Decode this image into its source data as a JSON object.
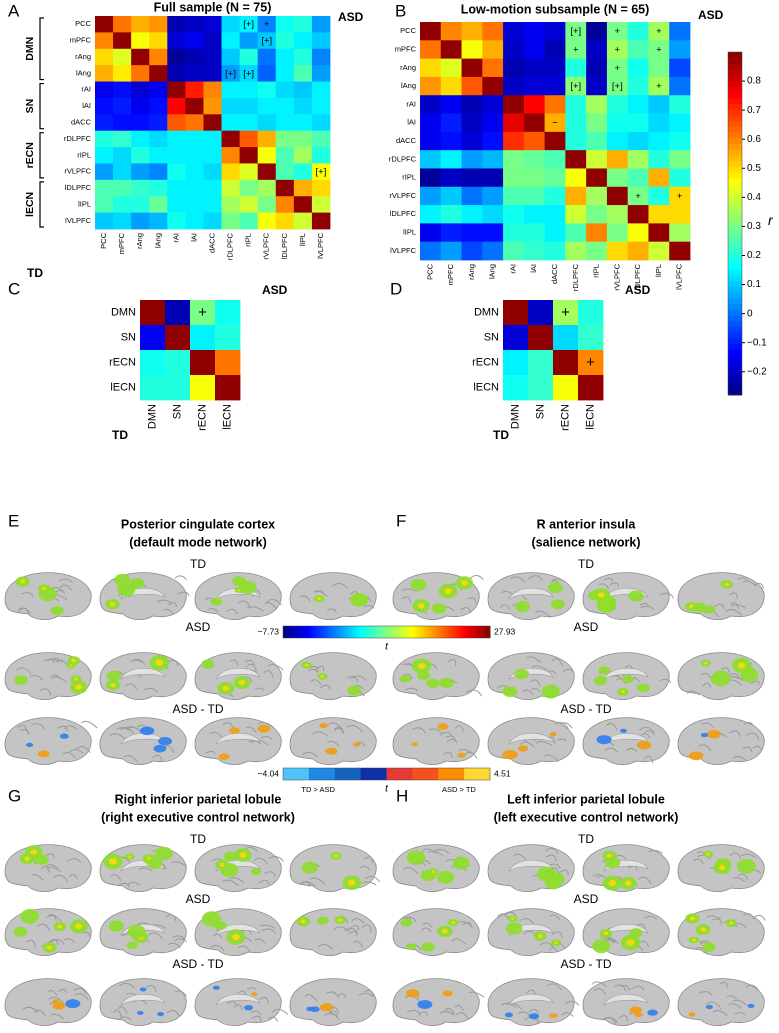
{
  "chart_data": [
    {
      "type": "heatmap",
      "panel": "A",
      "title": "Full sample (N = 75)",
      "upper_label": "ASD",
      "lower_label": "TD",
      "categories": [
        "PCC",
        "mPFC",
        "rAng",
        "lAng",
        "rAI",
        "lAI",
        "dACC",
        "rDLPFC",
        "rIPL",
        "rVLPFC",
        "lDLPFC",
        "lIPL",
        "lVLPFC"
      ],
      "groups": [
        {
          "label": "DMN",
          "from": "PCC",
          "to": "lAng"
        },
        {
          "label": "SN",
          "from": "rAI",
          "to": "dACC"
        },
        {
          "label": "rECN",
          "from": "rDLPFC",
          "to": "rVLPFC"
        },
        {
          "label": "lECN",
          "from": "lDLPFC",
          "to": "lVLPFC"
        }
      ],
      "values": [
        [
          0.88,
          0.62,
          0.55,
          0.58,
          -0.22,
          -0.2,
          -0.18,
          0.12,
          0.15,
          0.02,
          0.18,
          0.2,
          0.05
        ],
        [
          0.6,
          0.88,
          0.45,
          0.5,
          -0.18,
          -0.15,
          -0.2,
          0.15,
          0.05,
          0.1,
          0.2,
          0.15,
          0.1
        ],
        [
          0.5,
          0.42,
          0.88,
          0.6,
          -0.25,
          -0.22,
          -0.2,
          0.1,
          0.2,
          0.0,
          0.15,
          0.2,
          0.02
        ],
        [
          0.55,
          0.48,
          0.62,
          0.88,
          -0.22,
          -0.2,
          -0.2,
          0.05,
          0.12,
          -0.02,
          0.15,
          0.25,
          0.05
        ],
        [
          -0.15,
          -0.12,
          -0.18,
          -0.15,
          0.88,
          0.72,
          0.6,
          0.15,
          0.15,
          0.18,
          0.12,
          0.1,
          0.15
        ],
        [
          -0.12,
          -0.1,
          -0.15,
          -0.12,
          0.75,
          0.88,
          0.58,
          0.12,
          0.12,
          0.15,
          0.15,
          0.12,
          0.15
        ],
        [
          -0.1,
          -0.12,
          -0.12,
          -0.1,
          0.65,
          0.62,
          0.88,
          0.15,
          0.15,
          0.12,
          0.15,
          0.15,
          0.12
        ],
        [
          0.2,
          0.22,
          0.15,
          0.12,
          0.15,
          0.15,
          0.15,
          0.88,
          0.65,
          0.55,
          0.3,
          0.3,
          0.25
        ],
        [
          0.15,
          0.12,
          0.2,
          0.15,
          0.15,
          0.15,
          0.15,
          0.6,
          0.88,
          0.45,
          0.25,
          0.35,
          0.2
        ],
        [
          0.05,
          0.12,
          0.05,
          0.02,
          0.18,
          0.15,
          0.12,
          0.5,
          0.42,
          0.88,
          0.25,
          0.2,
          0.45
        ],
        [
          0.25,
          0.25,
          0.22,
          0.2,
          0.15,
          0.15,
          0.15,
          0.4,
          0.3,
          0.35,
          0.88,
          0.55,
          0.5
        ],
        [
          0.25,
          0.2,
          0.2,
          0.28,
          0.15,
          0.15,
          0.15,
          0.35,
          0.4,
          0.3,
          0.6,
          0.88,
          0.4
        ],
        [
          0.1,
          0.12,
          0.05,
          0.08,
          0.18,
          0.15,
          0.12,
          0.3,
          0.25,
          0.45,
          0.5,
          0.4,
          0.88
        ]
      ],
      "annotations": [
        {
          "row": "PCC",
          "col": "rIPL",
          "label": "[+]"
        },
        {
          "row": "PCC",
          "col": "rVLPFC",
          "label": "+"
        },
        {
          "row": "mPFC",
          "col": "rVLPFC",
          "label": "[+]"
        },
        {
          "row": "lAng",
          "col": "rDLPFC",
          "label": "[+]"
        },
        {
          "row": "lAng",
          "col": "rIPL",
          "label": "[+]"
        },
        {
          "row": "rVLPFC",
          "col": "lVLPFC",
          "label": "[+]"
        }
      ]
    },
    {
      "type": "heatmap",
      "panel": "B",
      "title": "Low-motion subsample (N = 65)",
      "upper_label": "ASD",
      "categories": [
        "PCC",
        "mPFC",
        "rAng",
        "lAng",
        "rAI",
        "lAI",
        "dACC",
        "rDLPFC",
        "rIPL",
        "rVLPFC",
        "lDLPFC",
        "lIPL",
        "lVLPFC"
      ],
      "values": [
        [
          0.88,
          0.6,
          0.55,
          0.62,
          -0.18,
          -0.15,
          -0.18,
          0.3,
          -0.25,
          0.3,
          0.2,
          0.35,
          0.0
        ],
        [
          0.62,
          0.88,
          0.45,
          0.55,
          -0.2,
          -0.15,
          -0.22,
          0.3,
          -0.2,
          0.35,
          0.25,
          0.3,
          0.05
        ],
        [
          0.5,
          0.42,
          0.88,
          0.62,
          -0.22,
          -0.2,
          -0.2,
          0.2,
          -0.22,
          0.3,
          0.18,
          0.3,
          -0.05
        ],
        [
          0.58,
          0.5,
          0.65,
          0.88,
          -0.2,
          -0.18,
          -0.18,
          0.32,
          -0.2,
          0.3,
          0.2,
          0.35,
          0.0
        ],
        [
          -0.2,
          -0.15,
          -0.22,
          -0.18,
          0.88,
          0.75,
          0.62,
          0.2,
          0.35,
          0.2,
          0.15,
          0.1,
          0.2
        ],
        [
          -0.15,
          -0.1,
          -0.2,
          -0.15,
          0.78,
          0.88,
          0.55,
          0.2,
          0.3,
          0.18,
          0.18,
          0.12,
          0.15
        ],
        [
          -0.15,
          -0.12,
          -0.18,
          -0.12,
          0.7,
          0.65,
          0.88,
          0.2,
          0.25,
          0.15,
          0.12,
          0.15,
          0.18
        ],
        [
          0.1,
          0.15,
          0.05,
          0.08,
          0.3,
          0.28,
          0.25,
          0.88,
          0.4,
          0.55,
          0.35,
          0.2,
          0.3
        ],
        [
          -0.25,
          -0.2,
          -0.22,
          -0.22,
          0.3,
          0.3,
          0.28,
          0.45,
          0.88,
          0.3,
          0.25,
          0.55,
          0.2
        ],
        [
          0.05,
          0.1,
          0.0,
          0.05,
          0.25,
          0.25,
          0.2,
          0.55,
          0.35,
          0.88,
          0.3,
          0.2,
          0.5
        ],
        [
          0.15,
          0.2,
          0.15,
          0.12,
          0.18,
          0.15,
          0.15,
          0.4,
          0.3,
          0.35,
          0.88,
          0.5,
          0.5
        ],
        [
          -0.15,
          -0.1,
          -0.12,
          -0.12,
          0.2,
          0.2,
          0.15,
          0.25,
          0.6,
          0.3,
          0.45,
          0.88,
          0.35
        ],
        [
          0.0,
          0.05,
          -0.05,
          0.0,
          0.25,
          0.22,
          0.2,
          0.35,
          0.3,
          0.5,
          0.55,
          0.4,
          0.88
        ]
      ],
      "annotations": [
        {
          "row": "PCC",
          "col": "rDLPFC",
          "label": "[+]"
        },
        {
          "row": "PCC",
          "col": "rVLPFC",
          "label": "+"
        },
        {
          "row": "PCC",
          "col": "lIPL",
          "label": "+"
        },
        {
          "row": "mPFC",
          "col": "rDLPFC",
          "label": "+"
        },
        {
          "row": "mPFC",
          "col": "rVLPFC",
          "label": "+"
        },
        {
          "row": "mPFC",
          "col": "lIPL",
          "label": "+"
        },
        {
          "row": "rAng",
          "col": "rVLPFC",
          "label": "+"
        },
        {
          "row": "lAng",
          "col": "rDLPFC",
          "label": "[+]"
        },
        {
          "row": "lAng",
          "col": "rVLPFC",
          "label": "[+]"
        },
        {
          "row": "lAng",
          "col": "lIPL",
          "label": "+"
        },
        {
          "row": "lAI",
          "col": "dACC",
          "label": "−"
        },
        {
          "row": "rVLPFC",
          "col": "lDLPFC",
          "label": "+"
        },
        {
          "row": "rVLPFC",
          "col": "lVLPFC",
          "label": "+"
        }
      ]
    },
    {
      "type": "heatmap",
      "panel": "C",
      "upper_label": "ASD",
      "lower_label": "TD",
      "categories": [
        "DMN",
        "SN",
        "rECN",
        "lECN"
      ],
      "values": [
        [
          0.88,
          -0.22,
          0.3,
          0.18
        ],
        [
          -0.15,
          0.88,
          0.15,
          0.2
        ],
        [
          0.18,
          0.2,
          0.88,
          0.62
        ],
        [
          0.2,
          0.2,
          0.45,
          0.88
        ]
      ],
      "annotations": [
        {
          "row": "DMN",
          "col": "rECN",
          "label": "+"
        }
      ]
    },
    {
      "type": "heatmap",
      "panel": "D",
      "upper_label": "ASD",
      "lower_label": "TD",
      "categories": [
        "DMN",
        "SN",
        "rECN",
        "lECN"
      ],
      "values": [
        [
          0.88,
          -0.2,
          0.35,
          0.2
        ],
        [
          -0.18,
          0.88,
          0.12,
          0.22
        ],
        [
          0.15,
          0.22,
          0.88,
          0.6
        ],
        [
          0.18,
          0.22,
          0.45,
          0.88
        ]
      ],
      "annotations": [
        {
          "row": "DMN",
          "col": "rECN",
          "label": "+"
        },
        {
          "row": "rECN",
          "col": "lECN",
          "label": "+"
        }
      ]
    },
    {
      "type": "colorbar",
      "orientation": "vertical",
      "label": "r",
      "colormap": "jet",
      "ylim": [
        -0.28,
        0.9
      ],
      "yticks": [
        {
          "value": -0.2,
          "label": "−0.2"
        },
        {
          "value": -0.1,
          "label": "−0.1"
        },
        0,
        0.1,
        0.2,
        0.3,
        0.4,
        0.5,
        0.6,
        0.7,
        0.8
      ]
    },
    {
      "type": "colorbar",
      "orientation": "horizontal",
      "label": "t",
      "colormap": "jet",
      "xlim": [
        -7.73,
        27.93
      ],
      "xticks": [
        {
          "value": -7.73,
          "label": "−7.73"
        },
        27.93
      ]
    },
    {
      "type": "colorbar",
      "orientation": "horizontal",
      "label": "t",
      "colormap": "discrete",
      "xlim": [
        -4.04,
        4.51
      ],
      "colors": [
        "#4fc3f7",
        "#1e88e5",
        "#1565c0",
        "#0d2fa8",
        "#e53935",
        "#f4511e",
        "#fb8c00",
        "#fdd835"
      ],
      "xticks": [
        {
          "value": -4.04,
          "label": "−4.04"
        },
        4.51
      ],
      "left_note": "TD > ASD",
      "right_note": "ASD > TD"
    }
  ],
  "brain_panels": [
    {
      "letter": "E",
      "title": [
        "Posterior cingulate cortex",
        "(default mode network)"
      ],
      "rows": [
        "TD",
        "ASD",
        "ASD - TD"
      ]
    },
    {
      "letter": "F",
      "title": [
        "R anterior insula",
        "(salience network)"
      ],
      "rows": [
        "TD",
        "ASD",
        "ASD - TD"
      ]
    },
    {
      "letter": "G",
      "title": [
        "Right inferior parietal lobule",
        "(right executive control network)"
      ],
      "rows": [
        "TD",
        "ASD",
        "ASD - TD"
      ]
    },
    {
      "letter": "H",
      "title": [
        "Left inferior parietal lobule",
        "(left executive control network)"
      ],
      "rows": [
        "TD",
        "ASD",
        "ASD - TD"
      ]
    }
  ]
}
